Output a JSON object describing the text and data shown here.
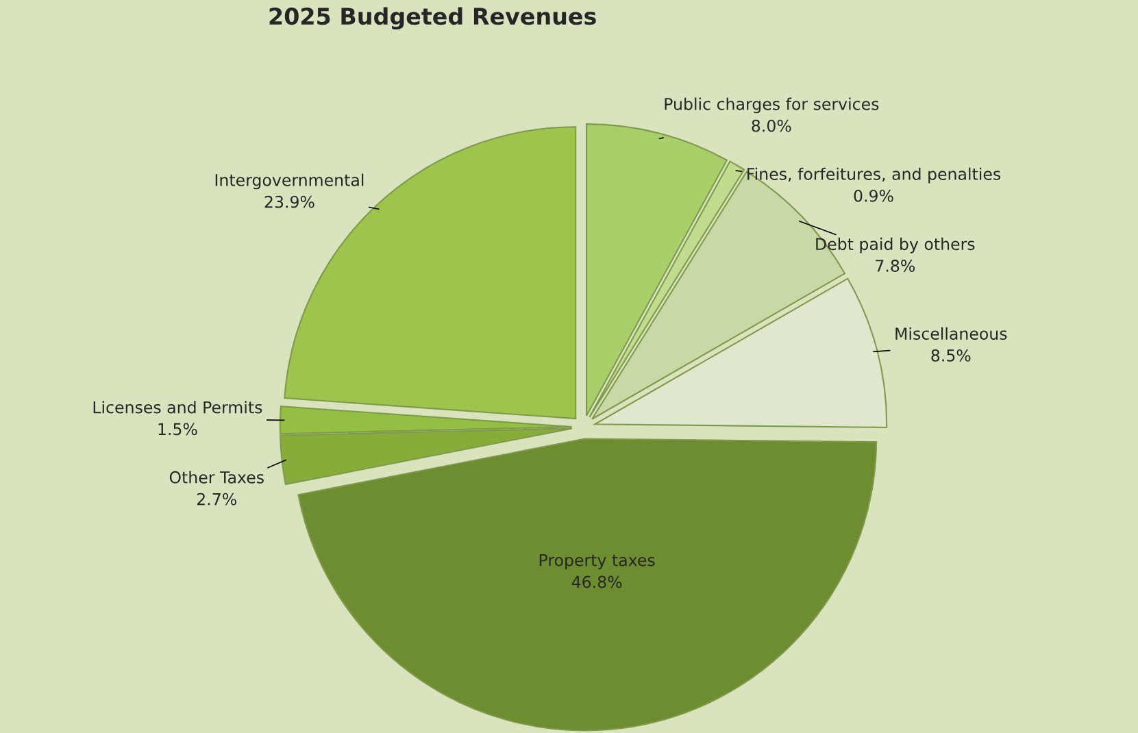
{
  "chart_data": {
    "type": "pie",
    "title": "2025 Budgeted Revenues",
    "categories": [
      "Public charges for services",
      "Fines, forfeitures, and penalties",
      "Debt paid by others",
      "Miscellaneous",
      "Property taxes",
      "Other Taxes",
      "Licenses and Permits",
      "Intergovernmental"
    ],
    "values": [
      8.0,
      0.9,
      7.8,
      8.5,
      46.8,
      2.7,
      1.5,
      23.9
    ],
    "colors": [
      "#a9cf6a",
      "#c2dc8f",
      "#c6d9a6",
      "#dfe8cf",
      "#6e8d30",
      "#86ad3a",
      "#93bf42",
      "#9dc44d"
    ],
    "value_labels": [
      "8.0%",
      "0.9%",
      "7.8%",
      "8.5%",
      "46.8%",
      "2.7%",
      "1.5%",
      "23.9%"
    ]
  }
}
